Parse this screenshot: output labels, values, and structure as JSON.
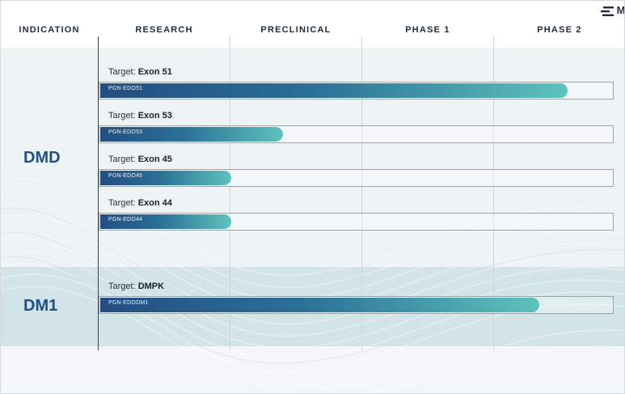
{
  "chart_data": {
    "type": "bar",
    "orientation": "horizontal",
    "stages": [
      "INDICATION",
      "RESEARCH",
      "PRECLINICAL",
      "PHASE 1",
      "PHASE 2"
    ],
    "x_scale": "development stage (0 = start of Research, 4 = end of Phase 2)",
    "xlim": [
      0,
      4
    ],
    "groups": [
      {
        "indication": "DMD",
        "programs": [
          {
            "target_prefix": "Target: ",
            "target": "Exon 51",
            "program": "PGN-EDO51",
            "progress": 3.55
          },
          {
            "target_prefix": "Target: ",
            "target": "Exon 53",
            "program": "PGN-EDO53",
            "progress": 1.39
          },
          {
            "target_prefix": "Target: ",
            "target": "Exon 45",
            "program": "PGN-EDO45",
            "progress": 1.0
          },
          {
            "target_prefix": "Target: ",
            "target": "Exon 44",
            "program": "PGN-EDO44",
            "progress": 1.0
          }
        ]
      },
      {
        "indication": "DM1",
        "programs": [
          {
            "target_prefix": "Target: ",
            "target": "DMPK",
            "program": "PGN-EDODM1",
            "progress": 3.34
          }
        ]
      }
    ],
    "colors": {
      "bar_start": "#234e82",
      "bar_end": "#5ec2bc",
      "indication_text": "#1f4f87"
    }
  },
  "logo": {
    "text": "M",
    "icon": "company-logo-icon"
  }
}
